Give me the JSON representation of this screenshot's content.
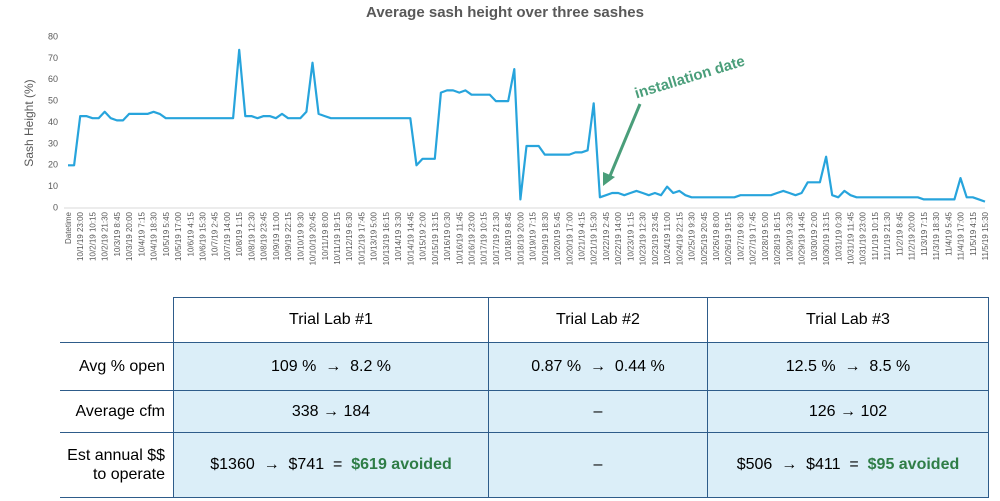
{
  "chart_data": {
    "type": "line",
    "title": "Average sash height over three sashes",
    "y_label": "Sash Height (%)",
    "annotation": "installation date",
    "annotation_color": "#4a9e7a",
    "color": "#27a4dc",
    "ylim": [
      0,
      80
    ],
    "yticks": [
      0,
      10,
      20,
      30,
      40,
      50,
      60,
      70,
      80
    ],
    "grid": false,
    "categories": [
      "Datetime",
      null,
      "10/1/19 23:00",
      null,
      "10/2/19 10:15",
      null,
      "10/2/19 21:30",
      null,
      "10/3/19 8:45",
      null,
      "10/3/19 20:00",
      null,
      "10/4/19 7:15",
      null,
      "10/4/19 18:30",
      null,
      "10/5/19 5:45",
      null,
      "10/5/19 17:00",
      null,
      "10/6/19 4:15",
      null,
      "10/6/19 15:30",
      null,
      "10/7/19 2:45",
      null,
      "10/7/19 14:00",
      null,
      "10/8/19 1:15",
      null,
      "10/8/19 12:30",
      null,
      "10/8/19 23:45",
      null,
      "10/9/19 11:00",
      null,
      "10/9/19 22:15",
      null,
      "10/10/19 9:30",
      null,
      "10/10/19 20:45",
      null,
      "10/11/19 8:00",
      null,
      "10/11/19 19:15",
      null,
      "10/12/19 6:30",
      null,
      "10/12/19 17:45",
      null,
      "10/13/19 5:00",
      null,
      "10/13/19 16:15",
      null,
      "10/14/19 3:30",
      null,
      "10/14/19 14:45",
      null,
      "10/15/19 2:00",
      null,
      "10/15/19 13:15",
      null,
      "10/16/19 0:30",
      null,
      "10/16/19 11:45",
      null,
      "10/16/19 23:00",
      null,
      "10/17/19 10:15",
      null,
      "10/17/19 21:30",
      null,
      "10/18/19 8:45",
      null,
      "10/18/19 20:00",
      null,
      "10/19/19 7:15",
      null,
      "10/19/19 18:30",
      null,
      "10/20/19 5:45",
      null,
      "10/20/19 17:00",
      null,
      "10/21/19 4:15",
      null,
      "10/21/19 15:30",
      null,
      "10/22/19 2:45",
      null,
      "10/22/19 14:00",
      null,
      "10/23/19 1:15",
      null,
      "10/23/19 12:30",
      null,
      "10/23/19 23:45",
      null,
      "10/24/19 11:00",
      null,
      "10/24/19 22:15",
      null,
      "10/25/19 9:30",
      null,
      "10/25/19 20:45",
      null,
      "10/26/19 8:00",
      null,
      "10/26/19 19:15",
      null,
      "10/27/19 6:30",
      null,
      "10/27/19 17:45",
      null,
      "10/28/19 5:00",
      null,
      "10/28/19 16:15",
      null,
      "10/29/19 3:30",
      null,
      "10/29/19 14:45",
      null,
      "10/30/19 2:00",
      null,
      "10/30/19 13:15",
      null,
      "10/31/19 0:30",
      null,
      "10/31/19 11:45",
      null,
      "10/31/19 23:00",
      null,
      "11/1/19 10:15",
      null,
      "11/1/19 21:30",
      null,
      "11/2/19 8:45",
      null,
      "11/2/19 20:00",
      null,
      "11/3/19 7:15",
      null,
      "11/3/19 18:30",
      null,
      "11/4/19 5:45",
      null,
      "11/4/19 17:00",
      null,
      "11/5/19 4:15",
      null,
      "11/5/19 15:30"
    ],
    "values": [
      20,
      20,
      43,
      43,
      42,
      42,
      45,
      42,
      41,
      41,
      44,
      44,
      44,
      44,
      45,
      44,
      42,
      42,
      42,
      42,
      42,
      42,
      42,
      42,
      42,
      42,
      42,
      42,
      74,
      43,
      43,
      42,
      43,
      43,
      42,
      44,
      42,
      42,
      42,
      45,
      68,
      44,
      43,
      42,
      42,
      42,
      42,
      42,
      42,
      42,
      42,
      42,
      42,
      42,
      42,
      42,
      42,
      20,
      23,
      23,
      23,
      54,
      55,
      55,
      54,
      55,
      53,
      53,
      53,
      53,
      50,
      50,
      50,
      65,
      4,
      29,
      29,
      29,
      25,
      25,
      25,
      25,
      25,
      26,
      26,
      27,
      49,
      5,
      6,
      7,
      7,
      6,
      7,
      8,
      7,
      6,
      7,
      6,
      10,
      7,
      8,
      6,
      5,
      5,
      5,
      5,
      5,
      5,
      5,
      5,
      6,
      6,
      6,
      6,
      6,
      6,
      7,
      8,
      7,
      6,
      7,
      12,
      12,
      12,
      24,
      6,
      5,
      8,
      6,
      5,
      5,
      5,
      5,
      5,
      5,
      5,
      5,
      5,
      5,
      5,
      4,
      4,
      4,
      4,
      4,
      4,
      14,
      5,
      5,
      4,
      3
    ]
  },
  "table": {
    "columns": [
      "Trial Lab #1",
      "Trial Lab #2",
      "Trial Lab #3"
    ],
    "highlight_color": "#2e7d46",
    "rows": [
      {
        "label": [
          "Avg % open"
        ],
        "cells": [
          {
            "text": "109 %  →  8.2 %"
          },
          {
            "text": "0.87 %  →  0.44 %"
          },
          {
            "text": "12.5 %  →  8.5 %"
          }
        ]
      },
      {
        "label": [
          "Average cfm"
        ],
        "cells": [
          {
            "text": "338 → 184"
          },
          {
            "text": "–"
          },
          {
            "text": "126 → 102"
          }
        ]
      },
      {
        "label": [
          "Est annual $$",
          "to operate"
        ],
        "cells": [
          {
            "text": "$1360  →  $741  =  ",
            "highlight": "$619 avoided"
          },
          {
            "text": "–"
          },
          {
            "text": "$506  →  $411  =  ",
            "highlight": "$95 avoided"
          }
        ]
      }
    ]
  }
}
